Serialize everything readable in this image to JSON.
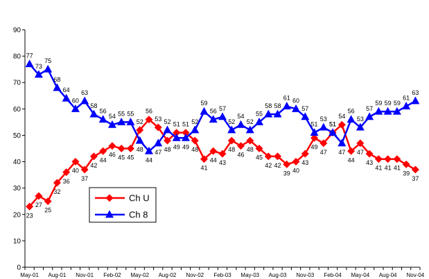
{
  "chart_data": {
    "type": "line",
    "title": "",
    "xlabel": "",
    "ylabel": "",
    "ylim": [
      0,
      90
    ],
    "yticks": [
      0,
      10,
      20,
      30,
      40,
      50,
      60,
      70,
      80,
      90
    ],
    "grid": false,
    "legend_position": "bottom-left",
    "xtick_labels": [
      "May-01",
      "Aug-01",
      "Nov-01",
      "Feb-02",
      "May-02",
      "Aug-02",
      "Nov-02",
      "Feb-03",
      "May-03",
      "Aug-03",
      "Nov-03",
      "Feb-04",
      "May-04",
      "Aug-04",
      "Nov-04"
    ],
    "series": [
      {
        "name": "Ch U",
        "color": "#ff0000",
        "marker": "diamond",
        "values": [
          23,
          27,
          25,
          32,
          36,
          40,
          37,
          42,
          44,
          46,
          45,
          45,
          52,
          56,
          53,
          48,
          51,
          51,
          48,
          41,
          44,
          43,
          48,
          46,
          48,
          45,
          42,
          42,
          39,
          40,
          43,
          49,
          47,
          51,
          54,
          44,
          47,
          43,
          41,
          41,
          41,
          39,
          37
        ]
      },
      {
        "name": "Ch 8",
        "color": "#0000ff",
        "marker": "triangle",
        "values": [
          77,
          73,
          75,
          68,
          64,
          60,
          63,
          58,
          56,
          54,
          55,
          55,
          48,
          44,
          47,
          52,
          49,
          49,
          52,
          59,
          56,
          57,
          52,
          54,
          52,
          55,
          58,
          58,
          61,
          60,
          57,
          51,
          53,
          51,
          47,
          56,
          53,
          57,
          59,
          59,
          59,
          61,
          63
        ]
      }
    ]
  }
}
